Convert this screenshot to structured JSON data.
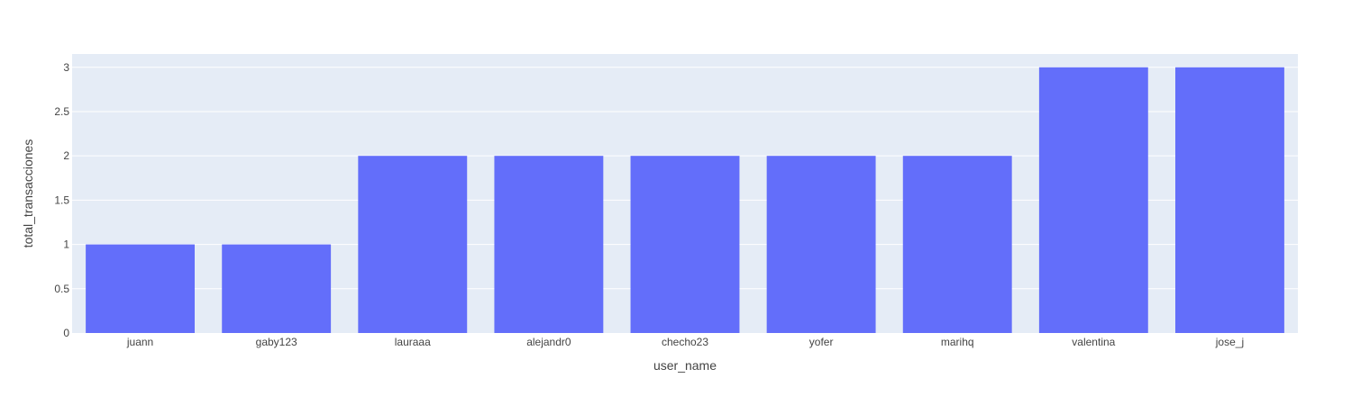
{
  "chart_data": {
    "type": "bar",
    "title": "",
    "xlabel": "user_name",
    "ylabel": "total_transacciones",
    "categories": [
      "juann",
      "gaby123",
      "lauraaa",
      "alejandr0",
      "checho23",
      "yofer",
      "marihq",
      "valentina",
      "jose_j"
    ],
    "values": [
      1,
      1,
      2,
      2,
      2,
      2,
      2,
      3,
      3
    ],
    "ylim": [
      0,
      3.15
    ],
    "yticks": [
      0,
      0.5,
      1,
      1.5,
      2,
      2.5,
      3
    ],
    "ytick_labels": [
      "0",
      "0.5",
      "1",
      "1.5",
      "2",
      "2.5",
      "3"
    ],
    "grid": true,
    "legend": "none",
    "colors": {
      "bar": "#636efa",
      "plot_background": "#e5ecf6",
      "grid": "#ffffff",
      "text": "#444444"
    }
  }
}
